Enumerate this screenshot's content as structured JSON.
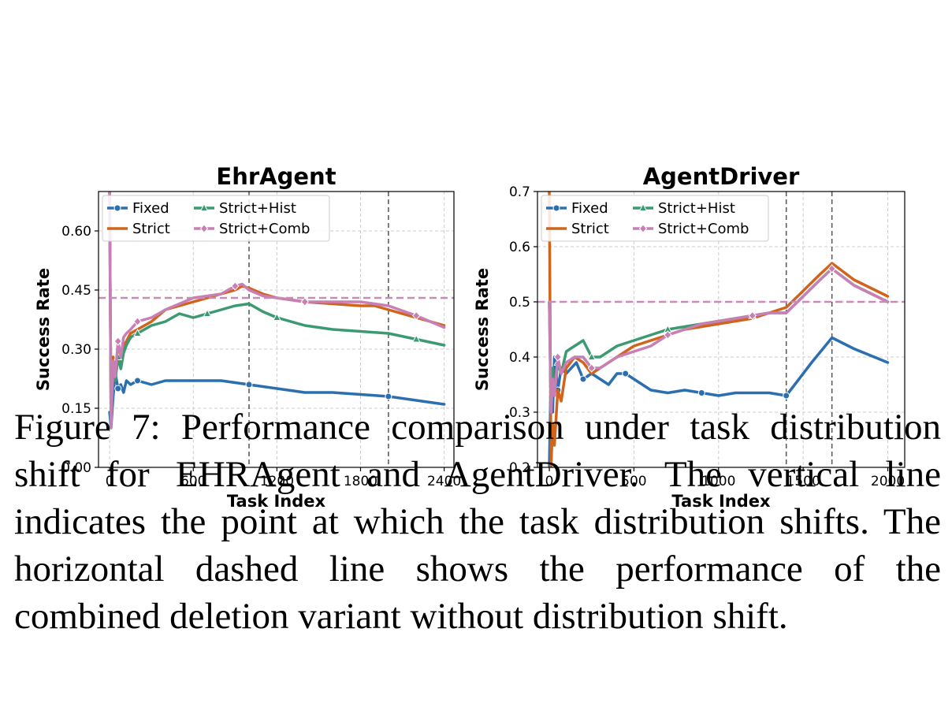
{
  "colors": {
    "Fixed": "#2c6fb0",
    "Strict": "#d0641c",
    "Strict+Hist": "#3c9a72",
    "Strict+Comb": "#c77fb4",
    "reference_line": "#c88bb8",
    "shift_line": "#555555",
    "grid": "#cccccc"
  },
  "caption": "Figure 7: Performance comparison under task distribution shift for EHRAgent and AgentDriver. The vertical line indicates the point at which the task distribution shifts. The horizontal dashed line shows the performance of the combined deletion variant without distribution shift.",
  "chart_data": [
    {
      "type": "line",
      "title": "EhrAgent",
      "xlabel": "Task Index",
      "ylabel": "Success Rate",
      "xlim": [
        -80,
        2470
      ],
      "ylim": [
        0.0,
        0.7
      ],
      "xticks": [
        0,
        600,
        1200,
        1800,
        2400
      ],
      "yticks": [
        0.0,
        0.15,
        0.3,
        0.45,
        0.6
      ],
      "ytick_format": 2,
      "grid": true,
      "legend_position": "top-left",
      "vertical_lines_x": [
        1000,
        2000
      ],
      "reference_line_y": 0.43,
      "series": [
        {
          "name": "Fixed",
          "marker": "circle",
          "x": [
            0,
            10,
            25,
            40,
            60,
            80,
            100,
            120,
            150,
            200,
            300,
            400,
            600,
            800,
            1000,
            1200,
            1400,
            1600,
            1800,
            2000,
            2200,
            2400
          ],
          "y": [
            0.14,
            0.1,
            0.18,
            0.24,
            0.2,
            0.21,
            0.19,
            0.22,
            0.21,
            0.22,
            0.21,
            0.22,
            0.22,
            0.22,
            0.21,
            0.2,
            0.19,
            0.19,
            0.185,
            0.18,
            0.17,
            0.16
          ]
        },
        {
          "name": "Strict",
          "marker": "none",
          "x": [
            0,
            10,
            25,
            40,
            60,
            80,
            100,
            120,
            150,
            200,
            300,
            400,
            600,
            800,
            900,
            950,
            1000,
            1100,
            1200,
            1400,
            1600,
            1800,
            1900,
            2000,
            2200,
            2400
          ],
          "y": [
            0.7,
            0.12,
            0.28,
            0.22,
            0.3,
            0.27,
            0.31,
            0.32,
            0.34,
            0.35,
            0.37,
            0.4,
            0.42,
            0.44,
            0.45,
            0.46,
            0.455,
            0.44,
            0.43,
            0.42,
            0.415,
            0.41,
            0.41,
            0.4,
            0.38,
            0.36
          ]
        },
        {
          "name": "Strict+Hist",
          "marker": "triangle",
          "x": [
            0,
            10,
            25,
            40,
            60,
            80,
            100,
            120,
            150,
            200,
            300,
            400,
            500,
            600,
            700,
            800,
            900,
            1000,
            1100,
            1200,
            1400,
            1600,
            1800,
            2000,
            2200,
            2400
          ],
          "y": [
            0.7,
            0.12,
            0.26,
            0.22,
            0.28,
            0.25,
            0.29,
            0.31,
            0.33,
            0.34,
            0.36,
            0.37,
            0.39,
            0.38,
            0.39,
            0.4,
            0.41,
            0.415,
            0.395,
            0.38,
            0.36,
            0.35,
            0.345,
            0.34,
            0.325,
            0.31
          ]
        },
        {
          "name": "Strict+Comb",
          "marker": "diamond",
          "x": [
            0,
            10,
            25,
            40,
            60,
            80,
            100,
            120,
            150,
            200,
            300,
            400,
            600,
            800,
            900,
            950,
            1000,
            1100,
            1200,
            1400,
            1600,
            1800,
            1900,
            2000,
            2200,
            2400
          ],
          "y": [
            0.7,
            0.1,
            0.27,
            0.23,
            0.32,
            0.28,
            0.33,
            0.34,
            0.35,
            0.37,
            0.38,
            0.4,
            0.43,
            0.44,
            0.46,
            0.465,
            0.45,
            0.435,
            0.43,
            0.42,
            0.42,
            0.42,
            0.415,
            0.41,
            0.385,
            0.355
          ]
        }
      ]
    },
    {
      "type": "line",
      "title": "AgentDriver",
      "xlabel": "Task Index",
      "ylabel": "Success Rate",
      "xlim": [
        -70,
        2100
      ],
      "ylim": [
        0.2,
        0.7
      ],
      "xticks": [
        0,
        500,
        1000,
        1500,
        2000
      ],
      "yticks": [
        0.2,
        0.3,
        0.4,
        0.5,
        0.6,
        0.7
      ],
      "ytick_format": 1,
      "grid": true,
      "legend_position": "top-left",
      "vertical_lines_x": [
        1400,
        1670
      ],
      "reference_line_y": 0.5,
      "series": [
        {
          "name": "Fixed",
          "marker": "circle",
          "x": [
            0,
            10,
            20,
            30,
            50,
            70,
            100,
            130,
            160,
            200,
            250,
            300,
            350,
            400,
            450,
            500,
            600,
            700,
            800,
            900,
            1000,
            1100,
            1200,
            1300,
            1400,
            1550,
            1670,
            1800,
            2000
          ],
          "y": [
            0.2,
            0.37,
            0.3,
            0.4,
            0.34,
            0.38,
            0.37,
            0.38,
            0.39,
            0.36,
            0.37,
            0.36,
            0.35,
            0.37,
            0.37,
            0.36,
            0.34,
            0.335,
            0.34,
            0.335,
            0.33,
            0.335,
            0.335,
            0.335,
            0.33,
            0.39,
            0.435,
            0.415,
            0.39
          ]
        },
        {
          "name": "Strict",
          "marker": "none",
          "x": [
            0,
            10,
            20,
            30,
            50,
            70,
            100,
            150,
            200,
            250,
            300,
            400,
            500,
            600,
            700,
            800,
            900,
            1000,
            1100,
            1200,
            1300,
            1400,
            1500,
            1600,
            1670,
            1800,
            2000
          ],
          "y": [
            0.7,
            0.2,
            0.28,
            0.24,
            0.34,
            0.32,
            0.38,
            0.4,
            0.39,
            0.37,
            0.38,
            0.4,
            0.42,
            0.43,
            0.44,
            0.45,
            0.455,
            0.46,
            0.465,
            0.47,
            0.48,
            0.49,
            0.52,
            0.55,
            0.57,
            0.54,
            0.51
          ]
        },
        {
          "name": "Strict+Hist",
          "marker": "triangle",
          "x": [
            0,
            10,
            20,
            30,
            50,
            70,
            100,
            150,
            200,
            250,
            300,
            400,
            500,
            600,
            700,
            800,
            900,
            1000,
            1100,
            1200,
            1300,
            1400,
            1500,
            1600,
            1670,
            1800,
            2000
          ],
          "y": [
            0.5,
            0.3,
            0.38,
            0.33,
            0.39,
            0.37,
            0.41,
            0.42,
            0.43,
            0.4,
            0.4,
            0.42,
            0.43,
            0.44,
            0.45,
            0.455,
            0.46,
            0.465,
            0.47,
            0.475,
            0.48,
            0.48,
            0.51,
            0.54,
            0.56,
            0.53,
            0.5
          ]
        },
        {
          "name": "Strict+Comb",
          "marker": "diamond",
          "x": [
            0,
            10,
            20,
            30,
            50,
            70,
            100,
            150,
            200,
            250,
            300,
            400,
            500,
            600,
            700,
            800,
            900,
            1000,
            1100,
            1200,
            1300,
            1400,
            1500,
            1600,
            1670,
            1800,
            2000
          ],
          "y": [
            0.5,
            0.3,
            0.36,
            0.33,
            0.4,
            0.37,
            0.39,
            0.4,
            0.4,
            0.38,
            0.38,
            0.4,
            0.41,
            0.42,
            0.44,
            0.45,
            0.46,
            0.465,
            0.47,
            0.475,
            0.48,
            0.48,
            0.51,
            0.54,
            0.56,
            0.53,
            0.5
          ]
        }
      ]
    }
  ]
}
